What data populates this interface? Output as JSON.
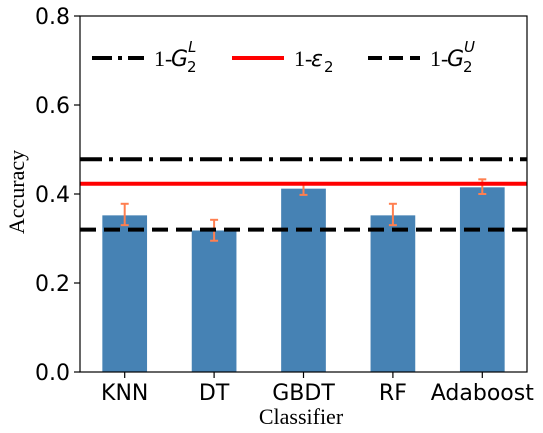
{
  "chart_data": {
    "type": "bar",
    "title": "",
    "xlabel": "Classifier",
    "ylabel": "Accuracy",
    "ylim": [
      0.0,
      0.8
    ],
    "yticks": [
      "0.0",
      "0.2",
      "0.4",
      "0.6",
      "0.8"
    ],
    "categories": [
      "KNN",
      "DT",
      "GBDT",
      "RF",
      "Adaboost"
    ],
    "values": [
      0.352,
      0.318,
      0.412,
      0.352,
      0.415
    ],
    "error_low": [
      0.33,
      0.295,
      0.398,
      0.33,
      0.4
    ],
    "error_high": [
      0.378,
      0.342,
      0.425,
      0.378,
      0.433
    ],
    "bar_color": "#4682b4",
    "error_color": "#ff7f50",
    "grid": false,
    "reference_lines": [
      {
        "name": "1-G2L",
        "value": 0.478,
        "style": "dash-dot",
        "color": "#000000"
      },
      {
        "name": "1-ε2",
        "value": 0.423,
        "style": "solid",
        "color": "#ff0000"
      },
      {
        "name": "1-G2U",
        "value": 0.32,
        "style": "dashed",
        "color": "#000000"
      }
    ],
    "legend": {
      "placement": "top",
      "entries": [
        {
          "prefix": "1-",
          "main": "G",
          "sub": "2",
          "sup": "L"
        },
        {
          "prefix": "1-",
          "main": "ε",
          "sub": "2",
          "sup": ""
        },
        {
          "prefix": "1-",
          "main": "G",
          "sub": "2",
          "sup": "U"
        }
      ]
    }
  }
}
